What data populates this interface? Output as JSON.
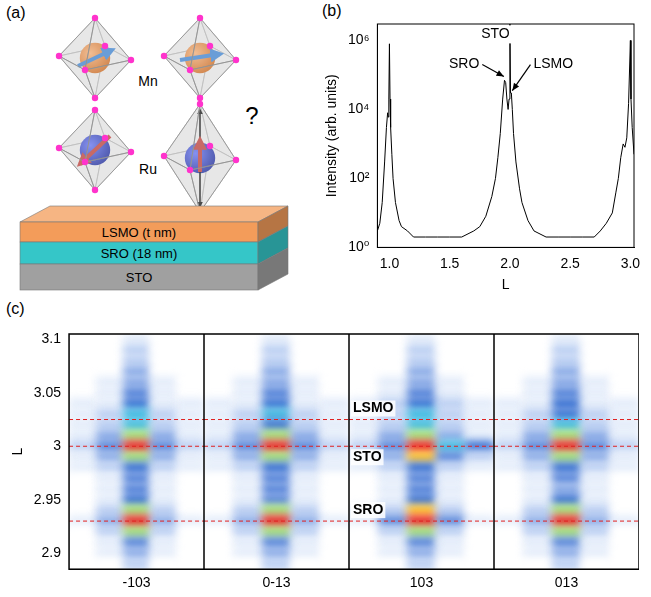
{
  "diagram": {
    "panel": "(a)",
    "mn": "Mn",
    "ru": "Ru",
    "question": "?",
    "layers": [
      {
        "text": "LSMO (t nm)",
        "color": "#f39c5a"
      },
      {
        "text": "SRO (18 nm)",
        "color": "#35c6c8"
      },
      {
        "text": "STO",
        "color": "#a0a0a0"
      }
    ]
  },
  "chart_data": [
    {
      "panel": "(b)",
      "type": "line",
      "x_label": "L",
      "y_label": "Intensity (arb. units)",
      "log": "y",
      "grid": false,
      "color": "#000000",
      "x": [
        0.9,
        0.92,
        0.94,
        0.96,
        0.975,
        0.985,
        0.99,
        0.995,
        1.0,
        1.005,
        1.01,
        1.02,
        1.03,
        1.05,
        1.08,
        1.1,
        1.15,
        1.2,
        1.3,
        1.4,
        1.5,
        1.6,
        1.7,
        1.75,
        1.8,
        1.85,
        1.88,
        1.9,
        1.92,
        1.94,
        1.955,
        1.965,
        1.975,
        1.985,
        1.993,
        2.0,
        2.005,
        2.012,
        2.02,
        2.03,
        2.05,
        2.08,
        2.1,
        2.15,
        2.2,
        2.3,
        2.4,
        2.5,
        2.6,
        2.7,
        2.75,
        2.8,
        2.85,
        2.88,
        2.9,
        2.92,
        2.94,
        2.955,
        2.97,
        2.985,
        3.0,
        3.005,
        3.015,
        3.03
      ],
      "values": [
        3,
        5,
        20,
        300,
        3000,
        8000,
        6000,
        20000,
        800000,
        20000,
        3000,
        500,
        100,
        20,
        6,
        4,
        3,
        2,
        2,
        2,
        2,
        2,
        3,
        4,
        8,
        30,
        100,
        400,
        2000,
        20000,
        70000,
        60000,
        20000,
        10000,
        20000,
        3000000,
        30000,
        30000,
        10000,
        2000,
        300,
        50,
        20,
        6,
        3,
        2,
        2,
        2,
        2,
        2,
        3,
        5,
        10,
        40,
        100,
        400,
        1000,
        800,
        1500,
        15000,
        1000000,
        20000,
        3000,
        500
      ],
      "xlim": [
        0.9,
        3.03
      ],
      "xticks": [
        {
          "value": 1,
          "label": "1.0"
        },
        {
          "value": 1.5,
          "label": "1.5"
        },
        {
          "value": 2,
          "label": "2.0"
        },
        {
          "value": 2.5,
          "label": "2.5"
        },
        {
          "value": 3,
          "label": "3.0"
        }
      ],
      "ylim": [
        1,
        3000000
      ],
      "yticks": [
        {
          "value": 1,
          "label": "10⁰"
        },
        {
          "value": 100,
          "label": "10²"
        },
        {
          "value": 10000,
          "label": "10⁴"
        },
        {
          "value": 1000000,
          "label": "10⁶"
        }
      ],
      "annotations": [
        {
          "text": "SRO",
          "x": 1.62,
          "y": 200000,
          "points_to": [
            1.95,
            90000
          ]
        },
        {
          "text": "STO",
          "x": 1.88,
          "y": 1500000
        },
        {
          "text": "LSMO",
          "x": 2.36,
          "y": 200000,
          "points_to": [
            2.02,
            35000
          ]
        }
      ]
    },
    {
      "panel": "(c)",
      "type": "heatmap",
      "y_label": "L",
      "tick_labels": "y",
      "grid": false,
      "ylim": [
        2.885,
        3.105
      ],
      "yticks": [
        2.9,
        2.95,
        3,
        3.05,
        3.1
      ],
      "L": [
        3.1,
        3.09,
        3.08,
        3.07,
        3.06,
        3.05,
        3.04,
        3.03,
        3.02,
        3.01,
        3.0,
        2.99,
        2.98,
        2.97,
        2.96,
        2.95,
        2.94,
        2.93,
        2.92,
        2.91,
        2.9,
        2.89
      ],
      "reference_lines": [
        {
          "L": 3.025,
          "label": "LSMO",
          "color": "#e02020",
          "line_style": "dashed"
        },
        {
          "L": 3.0,
          "label": "STO",
          "color": "#e02020",
          "line_style": "dashed"
        },
        {
          "L": 2.93,
          "label": "SRO",
          "color": "#e02020",
          "line_style": "dashed"
        }
      ],
      "panels": [
        {
          "label": "-103",
          "cells": [
            [
              0,
              0,
              1,
              0,
              0
            ],
            [
              0,
              0,
              2,
              0,
              0
            ],
            [
              0,
              0,
              2,
              0,
              0
            ],
            [
              0,
              0,
              3,
              0,
              0
            ],
            [
              0,
              1,
              3,
              1,
              0
            ],
            [
              0,
              1,
              4,
              1,
              0
            ],
            [
              1,
              1,
              5,
              1,
              1
            ],
            [
              1,
              2,
              6,
              2,
              1
            ],
            [
              1,
              2,
              6,
              2,
              1
            ],
            [
              1,
              3,
              7,
              3,
              1
            ],
            [
              2,
              4,
              9,
              4,
              2
            ],
            [
              1,
              3,
              7,
              3,
              1
            ],
            [
              1,
              2,
              5,
              2,
              1
            ],
            [
              0,
              1,
              4,
              1,
              0
            ],
            [
              0,
              1,
              4,
              1,
              0
            ],
            [
              0,
              1,
              5,
              1,
              0
            ],
            [
              0,
              2,
              7,
              2,
              0
            ],
            [
              1,
              3,
              9,
              3,
              1
            ],
            [
              0,
              2,
              7,
              2,
              0
            ],
            [
              0,
              1,
              4,
              1,
              0
            ],
            [
              0,
              1,
              3,
              1,
              0
            ],
            [
              0,
              0,
              2,
              0,
              0
            ]
          ]
        },
        {
          "label": "0-13",
          "cells": [
            [
              0,
              0,
              1,
              0,
              0
            ],
            [
              0,
              0,
              2,
              0,
              0
            ],
            [
              0,
              0,
              2,
              0,
              0
            ],
            [
              0,
              0,
              3,
              0,
              0
            ],
            [
              0,
              1,
              3,
              1,
              0
            ],
            [
              0,
              1,
              4,
              1,
              0
            ],
            [
              1,
              1,
              5,
              1,
              1
            ],
            [
              1,
              2,
              6,
              2,
              1
            ],
            [
              1,
              2,
              5,
              2,
              1
            ],
            [
              1,
              3,
              7,
              3,
              1
            ],
            [
              2,
              4,
              9,
              4,
              2
            ],
            [
              1,
              3,
              7,
              3,
              1
            ],
            [
              1,
              2,
              5,
              2,
              1
            ],
            [
              0,
              1,
              4,
              1,
              0
            ],
            [
              0,
              1,
              4,
              1,
              0
            ],
            [
              0,
              1,
              4,
              1,
              0
            ],
            [
              0,
              2,
              7,
              2,
              0
            ],
            [
              1,
              3,
              9,
              3,
              1
            ],
            [
              0,
              2,
              7,
              2,
              0
            ],
            [
              0,
              1,
              4,
              1,
              0
            ],
            [
              0,
              1,
              3,
              1,
              0
            ],
            [
              0,
              0,
              2,
              0,
              0
            ]
          ]
        },
        {
          "label": "103",
          "cells": [
            [
              0,
              0,
              1,
              0,
              0
            ],
            [
              0,
              0,
              2,
              0,
              0
            ],
            [
              0,
              0,
              2,
              0,
              0
            ],
            [
              0,
              0,
              3,
              0,
              0
            ],
            [
              0,
              1,
              3,
              1,
              0
            ],
            [
              0,
              1,
              4,
              1,
              0
            ],
            [
              1,
              2,
              5,
              2,
              1
            ],
            [
              1,
              2,
              6,
              2,
              1
            ],
            [
              1,
              2,
              6,
              2,
              1
            ],
            [
              1,
              3,
              7,
              3,
              1
            ],
            [
              2,
              4,
              9,
              6,
              5
            ],
            [
              1,
              3,
              8,
              4,
              2
            ],
            [
              1,
              2,
              5,
              2,
              1
            ],
            [
              0,
              1,
              4,
              1,
              0
            ],
            [
              0,
              1,
              4,
              1,
              0
            ],
            [
              0,
              1,
              5,
              1,
              0
            ],
            [
              1,
              2,
              8,
              2,
              0
            ],
            [
              1,
              4,
              9,
              4,
              1
            ],
            [
              0,
              2,
              7,
              2,
              0
            ],
            [
              0,
              1,
              4,
              1,
              0
            ],
            [
              0,
              1,
              3,
              1,
              0
            ],
            [
              0,
              0,
              2,
              0,
              0
            ]
          ]
        },
        {
          "label": "013",
          "cells": [
            [
              0,
              0,
              1,
              0,
              0
            ],
            [
              0,
              0,
              2,
              0,
              0
            ],
            [
              0,
              0,
              2,
              0,
              0
            ],
            [
              0,
              0,
              3,
              0,
              0
            ],
            [
              0,
              1,
              3,
              1,
              0
            ],
            [
              0,
              1,
              4,
              1,
              0
            ],
            [
              1,
              1,
              5,
              1,
              1
            ],
            [
              1,
              2,
              5,
              2,
              1
            ],
            [
              1,
              2,
              6,
              2,
              1
            ],
            [
              1,
              3,
              7,
              3,
              1
            ],
            [
              2,
              4,
              9,
              4,
              2
            ],
            [
              1,
              3,
              7,
              3,
              1
            ],
            [
              1,
              2,
              5,
              2,
              1
            ],
            [
              0,
              1,
              4,
              1,
              0
            ],
            [
              0,
              1,
              3,
              1,
              0
            ],
            [
              0,
              1,
              5,
              1,
              0
            ],
            [
              0,
              2,
              7,
              2,
              0
            ],
            [
              1,
              3,
              9,
              3,
              1
            ],
            [
              0,
              2,
              7,
              2,
              0
            ],
            [
              0,
              1,
              4,
              1,
              0
            ],
            [
              0,
              1,
              3,
              1,
              0
            ],
            [
              0,
              0,
              2,
              0,
              0
            ]
          ]
        }
      ]
    }
  ]
}
